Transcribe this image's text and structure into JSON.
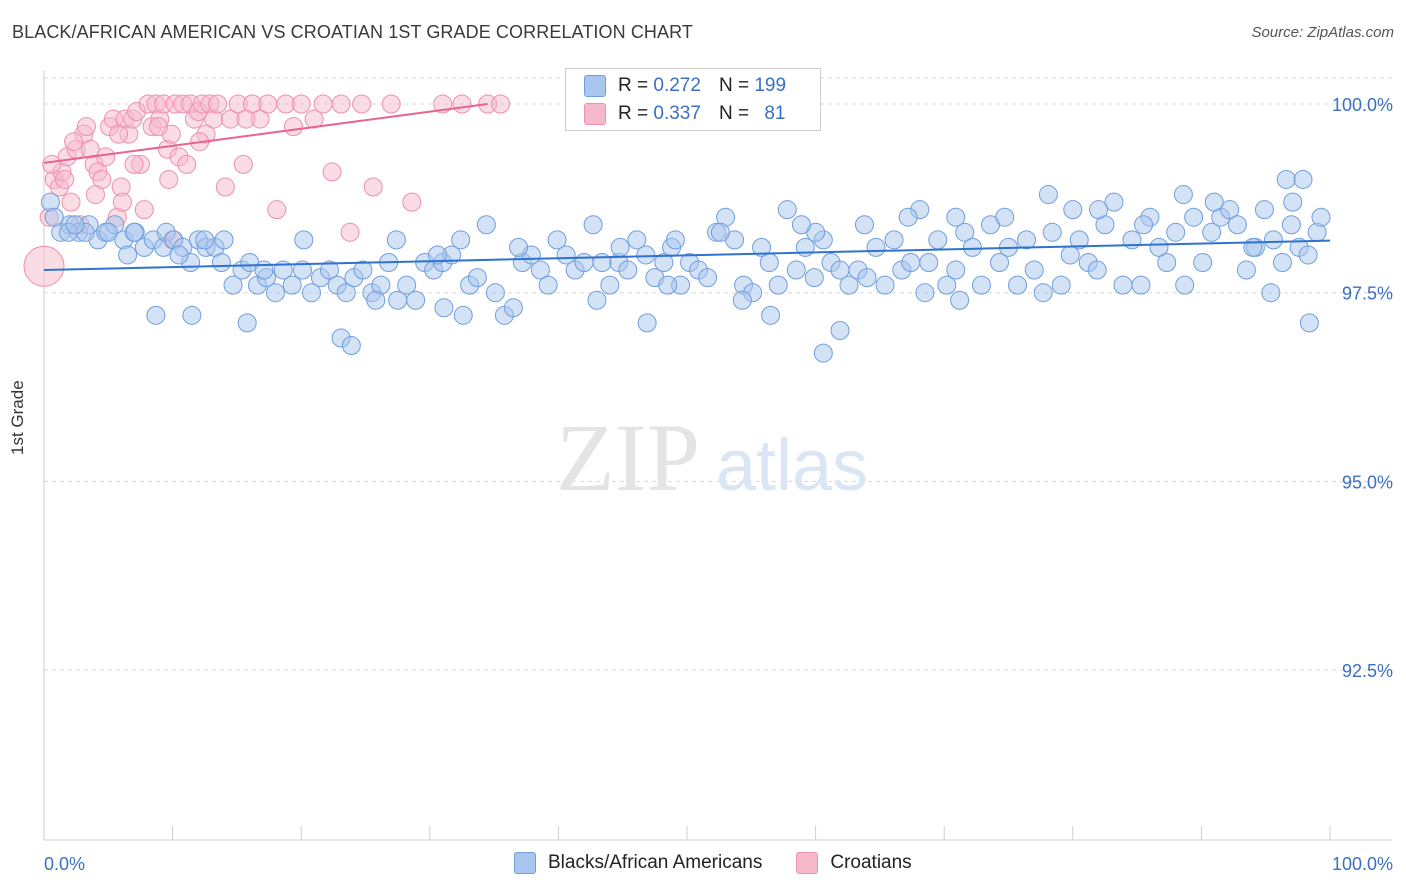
{
  "header": {
    "title": "BLACK/AFRICAN AMERICAN VS CROATIAN 1ST GRADE CORRELATION CHART",
    "source": "Source: ZipAtlas.com"
  },
  "watermark": {
    "zip": "ZIP",
    "atlas": "atlas"
  },
  "legend": {
    "rows": [
      {
        "r_label": "R =",
        "r_value": "0.272",
        "n_label": "N =",
        "n_value": "199"
      },
      {
        "r_label": "R =",
        "r_value": "0.337",
        "n_label": "N =",
        "n_value": "81"
      }
    ]
  },
  "bottom_legend": {
    "blacks": "Blacks/African Americans",
    "croatians": "Croatians"
  },
  "colors": {
    "blue_fill": "#a9c6ee",
    "blue_stroke": "#6f9ede",
    "blue_line": "#2f72cf",
    "pink_fill": "#f6b9cc",
    "pink_stroke": "#ee8fae",
    "pink_line": "#e8638f",
    "tick_text": "#3b6fc4",
    "grid": "#d8d8d8"
  },
  "chart_data": {
    "type": "scatter",
    "title": "BLACK/AFRICAN AMERICAN VS CROATIAN 1ST GRADE CORRELATION CHART",
    "xlabel": "",
    "ylabel": "1st Grade",
    "xlim": [
      0,
      100
    ],
    "ylim": [
      90.25,
      100.45
    ],
    "x_tick_labels": [
      "0.0%",
      "100.0%"
    ],
    "y_ticks": [
      100.0,
      97.5,
      95.0,
      92.5
    ],
    "y_tick_labels": [
      "100.0%",
      "97.5%",
      "95.0%",
      "92.5%"
    ],
    "grid": true,
    "legend_position": "top-center",
    "series": [
      {
        "name": "Blacks/African Americans",
        "r": 0.272,
        "n": 199,
        "trend": {
          "x": [
            0,
            100
          ],
          "y": [
            97.8,
            98.19
          ]
        },
        "points": [
          [
            0.5,
            98.7
          ],
          [
            1.3,
            98.3
          ],
          [
            2.0,
            98.4
          ],
          [
            2.7,
            98.3
          ],
          [
            3.5,
            98.4
          ],
          [
            4.2,
            98.2
          ],
          [
            4.8,
            98.3
          ],
          [
            5.5,
            98.4
          ],
          [
            6.2,
            98.2
          ],
          [
            6.5,
            98.0
          ],
          [
            7.1,
            98.3
          ],
          [
            7.8,
            98.1
          ],
          [
            8.5,
            98.2
          ],
          [
            9.3,
            98.1
          ],
          [
            9.5,
            98.3
          ],
          [
            10.1,
            98.2
          ],
          [
            10.8,
            98.1
          ],
          [
            11.4,
            97.9
          ],
          [
            12.0,
            98.2
          ],
          [
            12.6,
            98.1
          ],
          [
            13.3,
            98.1
          ],
          [
            14.0,
            98.2
          ],
          [
            14.7,
            97.6
          ],
          [
            15.4,
            97.8
          ],
          [
            16.0,
            97.9
          ],
          [
            16.6,
            97.6
          ],
          [
            17.3,
            97.7
          ],
          [
            18.0,
            97.5
          ],
          [
            18.6,
            97.8
          ],
          [
            19.3,
            97.6
          ],
          [
            20.1,
            97.8
          ],
          [
            20.8,
            97.5
          ],
          [
            21.5,
            97.7
          ],
          [
            22.2,
            97.8
          ],
          [
            22.8,
            97.6
          ],
          [
            23.5,
            97.5
          ],
          [
            24.1,
            97.7
          ],
          [
            24.8,
            97.8
          ],
          [
            25.5,
            97.5
          ],
          [
            26.2,
            97.6
          ],
          [
            26.8,
            97.9
          ],
          [
            27.5,
            97.4
          ],
          [
            28.2,
            97.6
          ],
          [
            28.9,
            97.4
          ],
          [
            29.6,
            97.9
          ],
          [
            30.3,
            97.8
          ],
          [
            31.0,
            97.9
          ],
          [
            31.7,
            98.0
          ],
          [
            32.4,
            98.2
          ],
          [
            33.1,
            97.6
          ],
          [
            33.7,
            97.7
          ],
          [
            34.4,
            98.4
          ],
          [
            35.1,
            97.5
          ],
          [
            35.8,
            97.2
          ],
          [
            36.5,
            97.3
          ],
          [
            37.2,
            97.9
          ],
          [
            37.9,
            98.0
          ],
          [
            38.6,
            97.8
          ],
          [
            39.2,
            97.6
          ],
          [
            39.9,
            98.2
          ],
          [
            40.6,
            98.0
          ],
          [
            41.3,
            97.8
          ],
          [
            42.0,
            97.9
          ],
          [
            42.7,
            98.4
          ],
          [
            43.4,
            97.9
          ],
          [
            44.0,
            97.6
          ],
          [
            44.7,
            97.9
          ],
          [
            45.4,
            97.8
          ],
          [
            46.1,
            98.2
          ],
          [
            46.8,
            98.0
          ],
          [
            47.5,
            97.7
          ],
          [
            48.2,
            97.9
          ],
          [
            48.8,
            98.1
          ],
          [
            49.5,
            97.6
          ],
          [
            50.2,
            97.9
          ],
          [
            50.9,
            97.8
          ],
          [
            51.6,
            97.7
          ],
          [
            52.3,
            98.3
          ],
          [
            53.0,
            98.5
          ],
          [
            53.7,
            98.2
          ],
          [
            54.4,
            97.6
          ],
          [
            55.1,
            97.5
          ],
          [
            55.8,
            98.1
          ],
          [
            56.4,
            97.9
          ],
          [
            57.1,
            97.6
          ],
          [
            57.8,
            98.6
          ],
          [
            58.5,
            97.8
          ],
          [
            59.2,
            98.1
          ],
          [
            59.9,
            97.7
          ],
          [
            60.6,
            98.2
          ],
          [
            61.2,
            97.9
          ],
          [
            61.9,
            97.8
          ],
          [
            62.6,
            97.6
          ],
          [
            63.3,
            97.8
          ],
          [
            64.0,
            97.7
          ],
          [
            64.7,
            98.1
          ],
          [
            65.4,
            97.6
          ],
          [
            66.1,
            98.2
          ],
          [
            66.7,
            97.8
          ],
          [
            67.4,
            97.9
          ],
          [
            68.1,
            98.6
          ],
          [
            68.8,
            97.9
          ],
          [
            69.5,
            98.2
          ],
          [
            70.2,
            97.6
          ],
          [
            70.9,
            97.8
          ],
          [
            71.6,
            98.3
          ],
          [
            72.2,
            98.1
          ],
          [
            72.9,
            97.6
          ],
          [
            73.6,
            98.4
          ],
          [
            74.3,
            97.9
          ],
          [
            75.0,
            98.1
          ],
          [
            75.7,
            97.6
          ],
          [
            76.4,
            98.2
          ],
          [
            77.0,
            97.8
          ],
          [
            77.7,
            97.5
          ],
          [
            78.4,
            98.3
          ],
          [
            79.1,
            97.6
          ],
          [
            79.8,
            98.0
          ],
          [
            80.5,
            98.2
          ],
          [
            81.2,
            97.9
          ],
          [
            81.9,
            97.8
          ],
          [
            82.5,
            98.4
          ],
          [
            83.2,
            98.7
          ],
          [
            83.9,
            97.6
          ],
          [
            84.6,
            98.2
          ],
          [
            85.3,
            97.6
          ],
          [
            86.0,
            98.5
          ],
          [
            86.7,
            98.1
          ],
          [
            87.3,
            97.9
          ],
          [
            88.0,
            98.3
          ],
          [
            88.7,
            97.6
          ],
          [
            89.4,
            98.5
          ],
          [
            90.1,
            97.9
          ],
          [
            90.8,
            98.3
          ],
          [
            91.5,
            98.5
          ],
          [
            92.2,
            98.6
          ],
          [
            92.8,
            98.4
          ],
          [
            93.5,
            97.8
          ],
          [
            94.2,
            98.1
          ],
          [
            94.9,
            98.6
          ],
          [
            95.6,
            98.2
          ],
          [
            96.3,
            97.9
          ],
          [
            97.0,
            98.4
          ],
          [
            97.6,
            98.1
          ],
          [
            98.3,
            98.0
          ],
          [
            99.0,
            98.3
          ],
          [
            99.3,
            98.5
          ],
          [
            12.5,
            98.2
          ],
          [
            48.5,
            97.6
          ],
          [
            80.0,
            98.6
          ],
          [
            8.7,
            97.2
          ],
          [
            11.5,
            97.2
          ],
          [
            15.8,
            97.1
          ],
          [
            23.1,
            96.9
          ],
          [
            23.9,
            96.8
          ],
          [
            25.8,
            97.4
          ],
          [
            31.1,
            97.3
          ],
          [
            32.6,
            97.2
          ],
          [
            43.0,
            97.4
          ],
          [
            46.9,
            97.1
          ],
          [
            54.3,
            97.4
          ],
          [
            56.5,
            97.2
          ],
          [
            60.0,
            98.3
          ],
          [
            60.6,
            96.7
          ],
          [
            61.9,
            97.0
          ],
          [
            68.5,
            97.5
          ],
          [
            71.2,
            97.4
          ],
          [
            88.6,
            98.8
          ],
          [
            94.0,
            98.1
          ],
          [
            95.4,
            97.5
          ],
          [
            96.6,
            99.0
          ],
          [
            97.9,
            99.0
          ],
          [
            97.1,
            98.7
          ],
          [
            98.4,
            97.1
          ],
          [
            78.1,
            98.8
          ],
          [
            91.0,
            98.7
          ],
          [
            82.0,
            98.6
          ],
          [
            74.7,
            98.5
          ],
          [
            85.5,
            98.4
          ],
          [
            70.9,
            98.5
          ],
          [
            67.2,
            98.5
          ],
          [
            63.8,
            98.4
          ],
          [
            58.9,
            98.4
          ],
          [
            52.6,
            98.3
          ],
          [
            49.1,
            98.2
          ],
          [
            44.8,
            98.1
          ],
          [
            36.9,
            98.1
          ],
          [
            30.6,
            98.0
          ],
          [
            27.4,
            98.2
          ],
          [
            20.2,
            98.2
          ],
          [
            17.1,
            97.8
          ],
          [
            13.8,
            97.9
          ],
          [
            10.5,
            98.0
          ],
          [
            7.0,
            98.3
          ],
          [
            5.0,
            98.3
          ],
          [
            3.2,
            98.3
          ],
          [
            1.9,
            98.3
          ],
          [
            0.8,
            98.5
          ],
          [
            2.4,
            98.4
          ]
        ]
      },
      {
        "name": "Croatians",
        "r": 0.337,
        "n": 81,
        "trend": {
          "x": [
            0,
            34.5
          ],
          "y": [
            99.22,
            100.0
          ]
        },
        "points": [
          [
            0.0,
            97.85
          ],
          [
            0.4,
            98.5
          ],
          [
            0.8,
            99.0
          ],
          [
            1.2,
            98.9
          ],
          [
            1.4,
            99.1
          ],
          [
            1.8,
            99.3
          ],
          [
            2.1,
            98.7
          ],
          [
            2.5,
            99.4
          ],
          [
            2.8,
            98.4
          ],
          [
            3.1,
            99.6
          ],
          [
            3.3,
            99.7
          ],
          [
            3.6,
            99.4
          ],
          [
            3.9,
            99.2
          ],
          [
            4.2,
            99.1
          ],
          [
            4.5,
            99.0
          ],
          [
            4.8,
            99.3
          ],
          [
            5.1,
            99.7
          ],
          [
            5.4,
            99.8
          ],
          [
            5.7,
            98.5
          ],
          [
            6.0,
            98.9
          ],
          [
            6.3,
            99.8
          ],
          [
            6.6,
            99.6
          ],
          [
            6.9,
            99.8
          ],
          [
            7.2,
            99.9
          ],
          [
            7.5,
            99.2
          ],
          [
            7.8,
            98.6
          ],
          [
            8.1,
            100.0
          ],
          [
            8.4,
            99.7
          ],
          [
            8.7,
            100.0
          ],
          [
            9.0,
            99.8
          ],
          [
            9.3,
            100.0
          ],
          [
            9.6,
            99.4
          ],
          [
            9.9,
            99.6
          ],
          [
            10.2,
            100.0
          ],
          [
            10.5,
            99.3
          ],
          [
            10.8,
            100.0
          ],
          [
            11.1,
            99.2
          ],
          [
            11.4,
            100.0
          ],
          [
            11.7,
            99.8
          ],
          [
            12.0,
            99.9
          ],
          [
            12.3,
            100.0
          ],
          [
            12.6,
            99.6
          ],
          [
            12.9,
            100.0
          ],
          [
            13.2,
            99.8
          ],
          [
            13.5,
            100.0
          ],
          [
            14.1,
            98.9
          ],
          [
            14.5,
            99.8
          ],
          [
            15.1,
            100.0
          ],
          [
            15.5,
            99.2
          ],
          [
            16.2,
            100.0
          ],
          [
            16.8,
            99.8
          ],
          [
            17.4,
            100.0
          ],
          [
            18.1,
            98.6
          ],
          [
            18.8,
            100.0
          ],
          [
            19.4,
            99.7
          ],
          [
            20.0,
            100.0
          ],
          [
            21.0,
            99.8
          ],
          [
            21.7,
            100.0
          ],
          [
            22.4,
            99.1
          ],
          [
            23.1,
            100.0
          ],
          [
            23.8,
            98.3
          ],
          [
            24.7,
            100.0
          ],
          [
            25.6,
            98.9
          ],
          [
            27.0,
            100.0
          ],
          [
            28.6,
            98.7
          ],
          [
            31.0,
            100.0
          ],
          [
            32.5,
            100.0
          ],
          [
            34.5,
            100.0
          ],
          [
            35.5,
            100.0
          ],
          [
            15.7,
            99.8
          ],
          [
            10.0,
            98.2
          ],
          [
            9.7,
            99.0
          ],
          [
            6.1,
            98.7
          ],
          [
            2.3,
            99.5
          ],
          [
            1.6,
            99.0
          ],
          [
            0.6,
            99.2
          ],
          [
            5.8,
            99.6
          ],
          [
            4.0,
            98.8
          ],
          [
            7.0,
            99.2
          ],
          [
            8.9,
            99.7
          ],
          [
            12.1,
            99.5
          ]
        ]
      }
    ]
  }
}
